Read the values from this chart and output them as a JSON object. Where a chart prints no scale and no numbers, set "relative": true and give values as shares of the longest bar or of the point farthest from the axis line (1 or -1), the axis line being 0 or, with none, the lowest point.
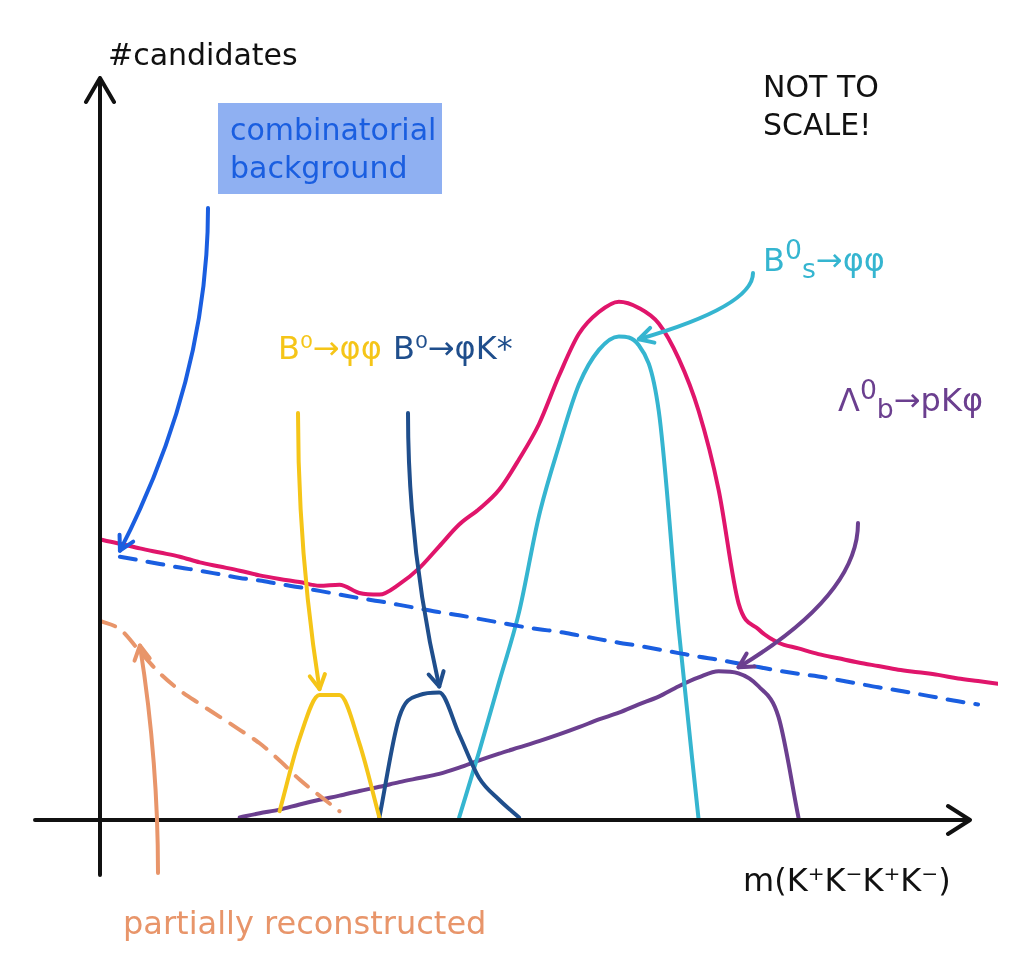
{
  "chart_data": {
    "type": "line",
    "relative": true,
    "xlabel": "m(K⁺K⁻K⁺K⁻)",
    "annotations": [
      "#candidates",
      "NOT TO SCALE!"
    ],
    "grid": false,
    "legend": false,
    "marker": "none",
    "categories": [
      null,
      null,
      null,
      null,
      null,
      null,
      null,
      null,
      null,
      null,
      null,
      null,
      null,
      null,
      null,
      null,
      null,
      null,
      null,
      null,
      null,
      null,
      null,
      null,
      null,
      null,
      null,
      null,
      null,
      null,
      null,
      null,
      null,
      null,
      null,
      null,
      null,
      null,
      null,
      null,
      null,
      null,
      null,
      null,
      null,
      null
    ],
    "series": [
      {
        "color": "#e0156b",
        "values": [
          0.541,
          0.533,
          0.524,
          0.516,
          0.508,
          0.497,
          0.489,
          0.481,
          0.472,
          0.465,
          0.459,
          0.452,
          0.454,
          0.438,
          0.435,
          0.455,
          0.486,
          0.528,
          0.57,
          0.6,
          0.637,
          0.696,
          0.764,
          0.857,
          0.938,
          0.98,
          1,
          0.988,
          0.958,
          0.89,
          0.789,
          0.637,
          0.418,
          0.368,
          0.342,
          0.331,
          0.32,
          0.312,
          0.304,
          0.297,
          0.29,
          0.285,
          0.28,
          0.273,
          0.268,
          0.263
        ]
      },
      {
        "name": "combinatorial background",
        "color": "#1a5ee0",
        "line_style": "dashed",
        "values": [
          null,
          0.508,
          0.501,
          0.494,
          0.487,
          0.481,
          0.474,
          0.467,
          0.462,
          0.455,
          0.449,
          0.442,
          0.435,
          0.428,
          0.422,
          0.415,
          0.408,
          0.401,
          0.395,
          0.388,
          0.381,
          0.374,
          0.368,
          0.363,
          0.356,
          0.349,
          0.342,
          0.336,
          0.329,
          0.322,
          0.315,
          0.309,
          0.302,
          0.295,
          0.288,
          0.282,
          0.277,
          0.27,
          0.263,
          0.256,
          0.25,
          0.243,
          0.236,
          0.229,
          0.223,
          null
        ]
      },
      {
        "name": "partially reconstructed",
        "color": "#e8956a",
        "line_style": "dashed",
        "values": [
          0.384,
          0.368,
          0.325,
          0.283,
          0.25,
          0.224,
          0.199,
          0.174,
          0.148,
          0.115,
          0.078,
          0.047,
          0.017,
          null,
          null,
          null,
          null,
          null,
          null,
          null,
          null,
          null,
          null,
          null,
          null,
          null,
          null,
          null,
          null,
          null,
          null,
          null,
          null,
          null,
          null,
          null,
          null,
          null,
          null,
          null,
          null,
          null,
          null,
          null,
          null,
          null
        ]
      },
      {
        "name": "B⁰→φφ",
        "color": "#f5c518",
        "values": [
          null,
          null,
          null,
          null,
          null,
          null,
          null,
          null,
          null,
          0.017,
          0.157,
          0.241,
          0.241,
          0.148,
          0.005,
          null,
          null,
          null,
          null,
          null,
          null,
          null,
          null,
          null,
          null,
          null,
          null,
          null,
          null,
          null,
          null,
          null,
          null,
          null,
          null,
          null,
          null,
          null,
          null,
          null,
          null,
          null,
          null,
          null,
          null,
          null
        ]
      },
      {
        "name": "B⁰→φK*",
        "color": "#1f4e8c",
        "values": [
          null,
          null,
          null,
          null,
          null,
          null,
          null,
          null,
          null,
          null,
          null,
          null,
          null,
          null,
          0.005,
          0.199,
          0.241,
          0.246,
          0.165,
          0.081,
          0.039,
          0.005,
          null,
          null,
          null,
          null,
          null,
          null,
          null,
          null,
          null,
          null,
          null,
          null,
          null,
          null,
          null,
          null,
          null,
          null,
          null,
          null,
          null,
          null,
          null,
          null
        ]
      },
      {
        "name": "B$^{0}$$_{s}$→φφ",
        "color": "#35b5d0",
        "values": [
          null,
          null,
          null,
          null,
          null,
          null,
          null,
          null,
          null,
          null,
          null,
          null,
          null,
          null,
          null,
          null,
          null,
          null,
          0.005,
          0.132,
          0.266,
          0.401,
          0.587,
          0.722,
          0.84,
          0.907,
          0.933,
          0.916,
          0.789,
          0.368,
          0,
          null,
          null,
          null,
          null,
          null,
          null,
          null,
          null,
          null,
          null,
          null,
          null,
          null,
          null,
          null
        ]
      },
      {
        "name": "Λ$^{0}$$_{b}$→pKφ",
        "color": "#6b3f8f",
        "values": [
          null,
          null,
          null,
          null,
          null,
          null,
          null,
          0.005,
          0.013,
          0.02,
          0.03,
          0.039,
          0.047,
          0.056,
          0.064,
          0.073,
          0.081,
          0.089,
          0.101,
          0.115,
          0.128,
          0.14,
          0.152,
          0.165,
          0.179,
          0.194,
          0.207,
          0.223,
          0.238,
          0.258,
          0.275,
          0.287,
          0.283,
          0.258,
          0.199,
          0.005,
          null,
          null,
          null,
          null,
          null,
          null,
          null,
          null,
          null,
          null
        ]
      }
    ]
  }
}
